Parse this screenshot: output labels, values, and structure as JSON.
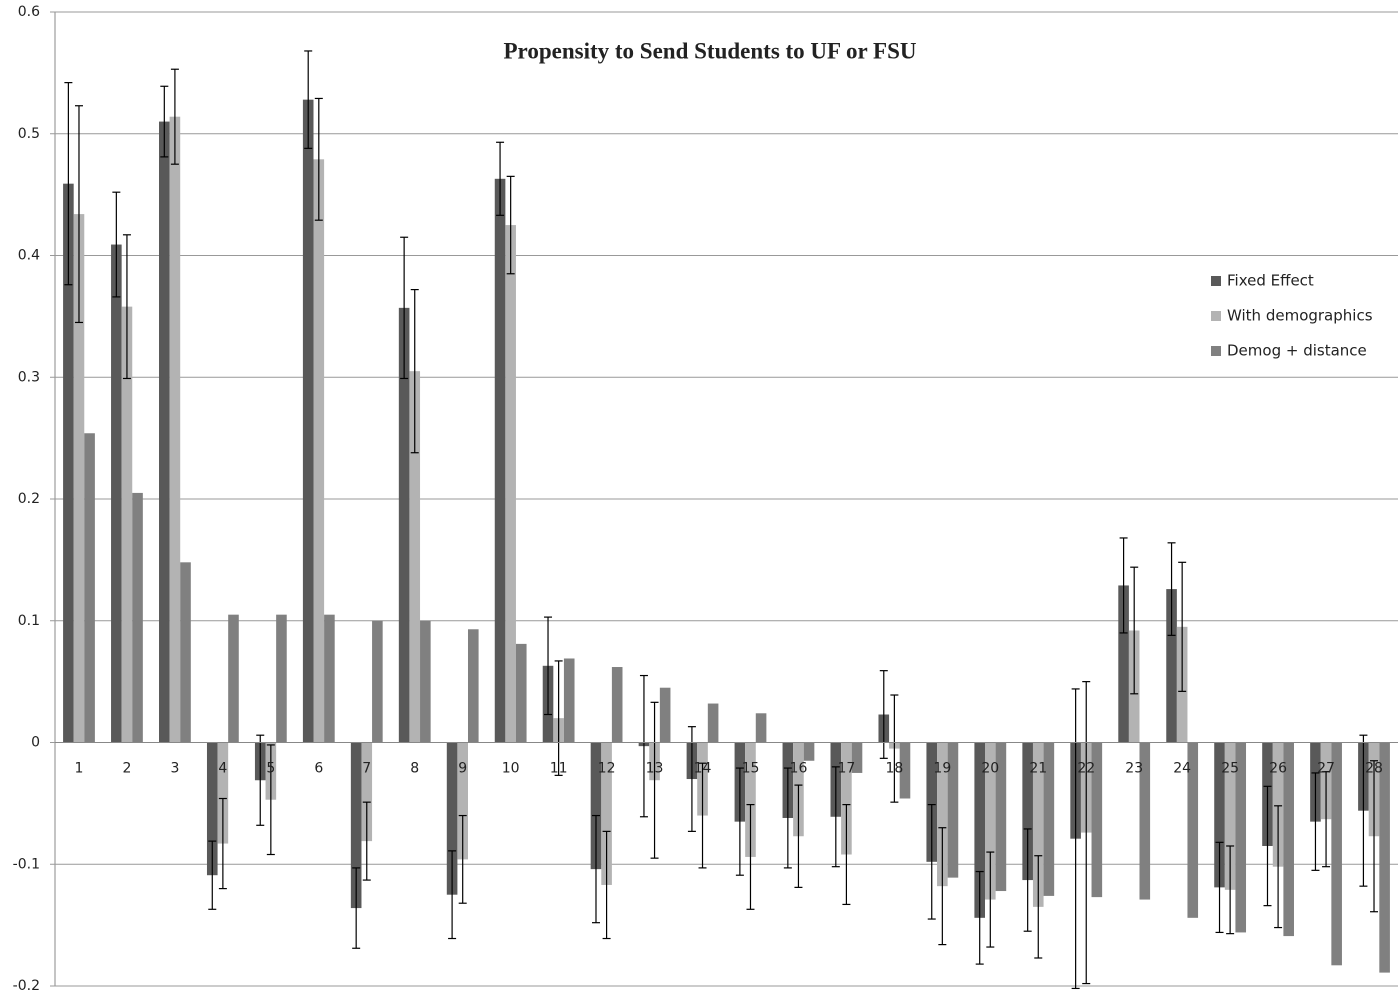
{
  "chart_data": {
    "type": "bar",
    "title": "Propensity to Send Students to UF or FSU",
    "categories": [
      "1",
      "2",
      "3",
      "4",
      "5",
      "6",
      "7",
      "8",
      "9",
      "10",
      "11",
      "12",
      "13",
      "14",
      "15",
      "16",
      "17",
      "18",
      "19",
      "20",
      "21",
      "22",
      "23",
      "24",
      "25",
      "26",
      "27",
      "28"
    ],
    "series": [
      {
        "name": "Fixed Effect",
        "color": "#595959",
        "values": [
          0.459,
          0.409,
          0.51,
          -0.109,
          -0.031,
          0.528,
          -0.136,
          0.357,
          -0.125,
          0.463,
          0.063,
          -0.104,
          -0.003,
          -0.03,
          -0.065,
          -0.062,
          -0.061,
          0.023,
          -0.098,
          -0.144,
          -0.113,
          -0.079,
          0.129,
          0.126,
          -0.119,
          -0.085,
          -0.065,
          -0.056
        ],
        "errors": [
          0.083,
          0.043,
          0.029,
          0.028,
          0.037,
          0.04,
          0.033,
          0.058,
          0.036,
          0.03,
          0.04,
          0.044,
          0.058,
          0.043,
          0.044,
          0.041,
          0.041,
          0.036,
          0.047,
          0.038,
          0.042,
          0.123,
          0.039,
          0.038,
          0.037,
          0.049,
          0.04,
          0.062
        ]
      },
      {
        "name": "With demographics",
        "color": "#b3b3b3",
        "values": [
          0.434,
          0.358,
          0.514,
          -0.083,
          -0.047,
          0.479,
          -0.081,
          0.305,
          -0.096,
          0.425,
          0.02,
          -0.117,
          -0.031,
          -0.06,
          -0.094,
          -0.077,
          -0.092,
          -0.005,
          -0.118,
          -0.129,
          -0.135,
          -0.074,
          0.092,
          0.095,
          -0.121,
          -0.102,
          -0.063,
          -0.077
        ],
        "errors": [
          0.089,
          0.059,
          0.039,
          0.037,
          0.045,
          0.05,
          0.032,
          0.067,
          0.036,
          0.04,
          0.047,
          0.044,
          0.064,
          0.043,
          0.043,
          0.042,
          0.041,
          0.044,
          0.048,
          0.039,
          0.042,
          0.124,
          0.052,
          0.053,
          0.036,
          0.05,
          0.039,
          0.062
        ]
      },
      {
        "name": "Demog + distance",
        "color": "#808080",
        "values": [
          0.254,
          0.205,
          0.148,
          0.105,
          0.105,
          0.105,
          0.1,
          0.1,
          0.093,
          0.081,
          0.069,
          0.062,
          0.045,
          0.032,
          0.024,
          -0.015,
          -0.025,
          -0.046,
          -0.111,
          -0.122,
          -0.126,
          -0.127,
          -0.129,
          -0.144,
          -0.156,
          -0.159,
          -0.183,
          -0.189
        ]
      }
    ],
    "ylim": [
      -0.2,
      0.6
    ],
    "yticks": [
      -0.2,
      -0.1,
      0,
      0.1,
      0.2,
      0.3,
      0.4,
      0.5,
      0.6
    ],
    "grid": true,
    "legend": "right"
  }
}
